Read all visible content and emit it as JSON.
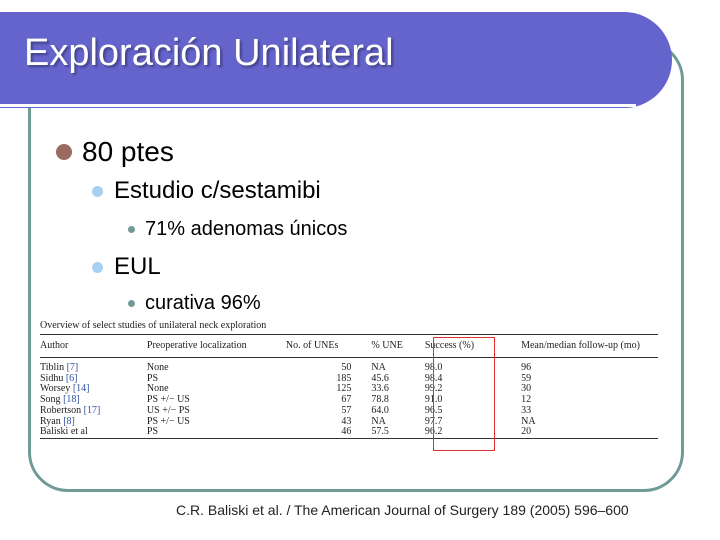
{
  "slide": {
    "title": "Exploración Unilateral",
    "bullets": {
      "b1": "80 ptes",
      "b2": "Estudio c/sestamibi",
      "b3": "71% adenomas únicos",
      "b4": "EUL",
      "b5": "curativa 96%"
    },
    "footer": "C.R. Baliski et al. / The American Journal of Surgery 189 (2005) 596–600"
  },
  "table": {
    "caption": "Overview of select studies of unilateral neck exploration",
    "headers": {
      "author": "Author",
      "localization": "Preoperative localization",
      "count": "No. of UNEs",
      "une": "% UNE",
      "success": "Success (%)",
      "followup": "Mean/median follow-up (mo)"
    },
    "rows": [
      {
        "author": "Tiblin",
        "ref": "[7]",
        "localization": "None",
        "count": "50",
        "une": "NA",
        "success": "98.0",
        "followup": "96"
      },
      {
        "author": "Sidhu",
        "ref": "[6]",
        "localization": "PS",
        "count": "185",
        "une": "45.6",
        "success": "98.4",
        "followup": "59"
      },
      {
        "author": "Worsey",
        "ref": "[14]",
        "localization": "None",
        "count": "125",
        "une": "33.6",
        "success": "99.2",
        "followup": "30"
      },
      {
        "author": "Song",
        "ref": "[18]",
        "localization": "PS +/− US",
        "count": "67",
        "une": "78.8",
        "success": "91.0",
        "followup": "12"
      },
      {
        "author": "Robertson",
        "ref": "[17]",
        "localization": "US +/− PS",
        "count": "57",
        "une": "64.0",
        "success": "96.5",
        "followup": "33"
      },
      {
        "author": "Ryan",
        "ref": "[8]",
        "localization": "PS +/− US",
        "count": "43",
        "une": "NA",
        "success": "97.7",
        "followup": "NA"
      },
      {
        "author": "Baliski et al",
        "ref": "",
        "localization": "PS",
        "count": "46",
        "une": "57.5",
        "success": "96.2",
        "followup": "20"
      }
    ]
  },
  "colors": {
    "title_band": "#6464cc",
    "frame": "#6f9a96",
    "bullet_l1": "#9a6b5e",
    "bullet_l2": "#a8d0f0",
    "highlight": "#e03030"
  }
}
